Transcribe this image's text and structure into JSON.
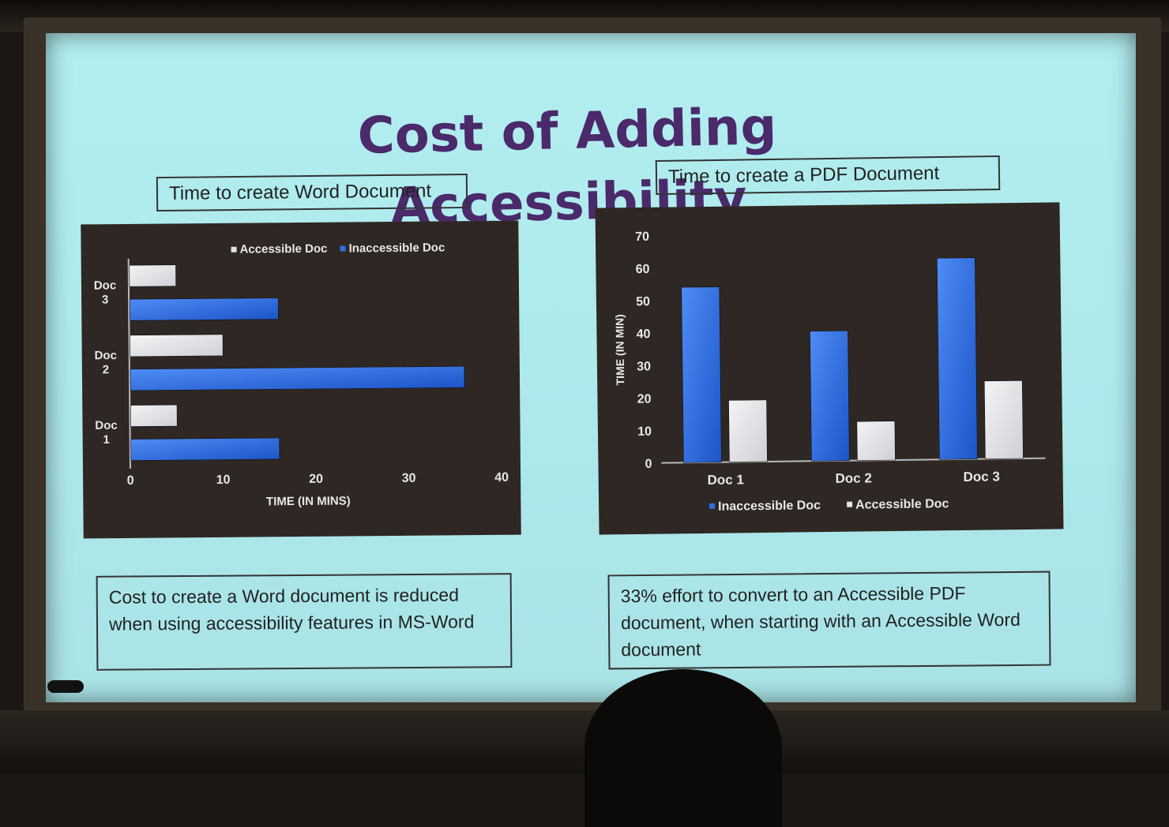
{
  "slide": {
    "title": "Cost of Adding Accessibility",
    "word_chart_title": "Time to create Word Document",
    "pdf_chart_title": "Time to create a PDF Document",
    "word_note": "Cost to create a Word document is reduced when using accessibility features in MS-Word",
    "pdf_note": "33% effort to convert to an Accessible PDF document, when starting with an Accessible Word document"
  },
  "colors": {
    "accessible": "#e4e4e8",
    "inaccessible": "#2e6ee0",
    "panel": "#2e2723",
    "axis_text": "#e8e8e8"
  },
  "chart_data": [
    {
      "type": "bar",
      "orientation": "horizontal",
      "categories": [
        "Doc\n1",
        "Doc\n2",
        "Doc\n3"
      ],
      "series": [
        {
          "name": "Accessible Doc",
          "values": [
            5,
            10,
            5
          ]
        },
        {
          "name": "Inaccessible Doc",
          "values": [
            16,
            36,
            16
          ]
        }
      ],
      "xlabel": "TIME (IN MINS)",
      "ylabel": "",
      "xlim": [
        0,
        40
      ],
      "xticks": [
        0,
        10,
        20,
        30,
        40
      ],
      "legend_position": "top",
      "grid": false
    },
    {
      "type": "bar",
      "orientation": "vertical",
      "categories": [
        "Doc 1",
        "Doc 2",
        "Doc 3"
      ],
      "series": [
        {
          "name": "Inaccessible Doc",
          "values": [
            54,
            40,
            62
          ]
        },
        {
          "name": "Accessible Doc",
          "values": [
            19,
            12,
            24
          ]
        }
      ],
      "xlabel": "",
      "ylabel": "TIME (IN MIN)",
      "ylim": [
        0,
        70
      ],
      "yticks": [
        0,
        10,
        20,
        30,
        40,
        50,
        60,
        70
      ],
      "legend_position": "bottom",
      "grid": false
    }
  ]
}
